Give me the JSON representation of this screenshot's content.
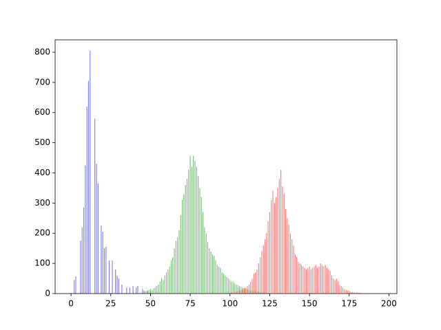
{
  "chart_data": {
    "type": "bar",
    "xlim": [
      -10,
      205
    ],
    "ylim": [
      0,
      841
    ],
    "xticks": [
      0,
      25,
      50,
      75,
      100,
      125,
      150,
      175,
      200
    ],
    "yticks": [
      0,
      100,
      200,
      300,
      400,
      500,
      600,
      700,
      800
    ],
    "grid": false,
    "series": [
      {
        "color": "#0000ff",
        "x": [
          2,
          3,
          6,
          7,
          8,
          9,
          10,
          11,
          12,
          15,
          16,
          17,
          19,
          20,
          21,
          22,
          24,
          26,
          28,
          29,
          30,
          32,
          35,
          37,
          39,
          41,
          42,
          45,
          46,
          48,
          50
        ],
        "values": [
          45,
          57,
          175,
          220,
          285,
          425,
          620,
          705,
          805,
          580,
          430,
          365,
          225,
          205,
          150,
          155,
          110,
          110,
          80,
          60,
          50,
          30,
          20,
          20,
          25,
          20,
          25,
          15,
          10,
          8,
          5
        ]
      },
      {
        "color": "#008000",
        "x": [
          45,
          46,
          47,
          48,
          49,
          50,
          51,
          52,
          53,
          54,
          55,
          56,
          57,
          58,
          59,
          60,
          61,
          62,
          63,
          64,
          65,
          66,
          67,
          68,
          69,
          70,
          71,
          72,
          73,
          74,
          75,
          76,
          77,
          78,
          79,
          80,
          81,
          82,
          83,
          84,
          85,
          86,
          87,
          88,
          89,
          90,
          91,
          92,
          93,
          94,
          95,
          96,
          97,
          98,
          99,
          100,
          101,
          102,
          103,
          104,
          105,
          106,
          107,
          108,
          109,
          110,
          111,
          112,
          113,
          114,
          115,
          116,
          117,
          118,
          119,
          120,
          121,
          122,
          123,
          124,
          125
        ],
        "values": [
          3,
          5,
          8,
          10,
          12,
          15,
          12,
          18,
          20,
          25,
          30,
          40,
          50,
          45,
          60,
          70,
          80,
          90,
          110,
          120,
          150,
          175,
          185,
          210,
          260,
          310,
          330,
          360,
          380,
          410,
          457,
          420,
          457,
          440,
          420,
          390,
          350,
          320,
          270,
          220,
          200,
          170,
          150,
          140,
          130,
          125,
          110,
          95,
          90,
          85,
          70,
          65,
          60,
          55,
          50,
          45,
          40,
          38,
          35,
          30,
          28,
          25,
          22,
          20,
          18,
          16,
          14,
          12,
          10,
          10,
          8,
          8,
          6,
          6,
          5,
          4,
          3,
          3,
          2,
          2,
          1
        ]
      },
      {
        "color": "#ff0000",
        "x": [
          100,
          101,
          102,
          103,
          104,
          105,
          106,
          107,
          108,
          109,
          110,
          111,
          112,
          113,
          114,
          115,
          116,
          117,
          118,
          119,
          120,
          121,
          122,
          123,
          124,
          125,
          126,
          127,
          128,
          129,
          130,
          131,
          132,
          133,
          134,
          135,
          136,
          137,
          138,
          139,
          140,
          141,
          142,
          143,
          144,
          145,
          146,
          147,
          148,
          149,
          150,
          151,
          152,
          153,
          154,
          155,
          156,
          157,
          158,
          159,
          160,
          161,
          162,
          163,
          164,
          165,
          166,
          167,
          168,
          169,
          170,
          171,
          172,
          173,
          174,
          175,
          176,
          177,
          178,
          179,
          180,
          181,
          182,
          183,
          184,
          185
        ],
        "values": [
          2,
          3,
          4,
          5,
          6,
          8,
          10,
          12,
          15,
          18,
          20,
          25,
          30,
          40,
          50,
          65,
          70,
          80,
          100,
          120,
          140,
          160,
          180,
          200,
          240,
          270,
          310,
          340,
          300,
          320,
          350,
          380,
          410,
          355,
          330,
          280,
          250,
          230,
          200,
          180,
          160,
          130,
          120,
          105,
          100,
          95,
          90,
          85,
          80,
          85,
          90,
          80,
          85,
          90,
          95,
          85,
          90,
          100,
          95,
          90,
          95,
          85,
          80,
          75,
          60,
          50,
          45,
          50,
          40,
          30,
          25,
          20,
          15,
          12,
          10,
          8,
          6,
          5,
          4,
          3,
          3,
          2,
          2,
          1,
          1,
          1
        ]
      }
    ]
  }
}
